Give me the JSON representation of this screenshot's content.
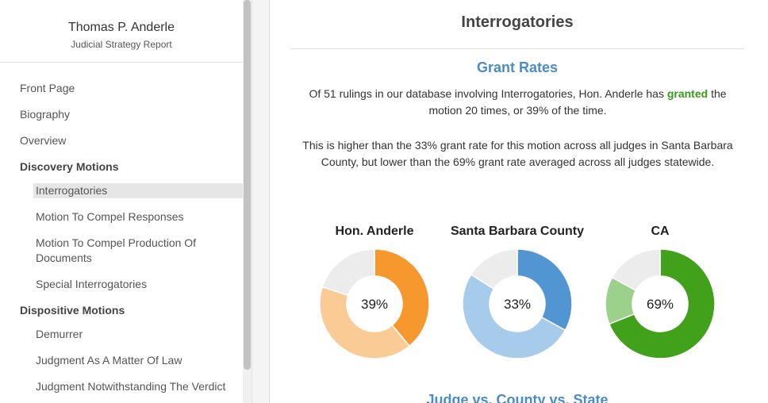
{
  "sidebar": {
    "name": "Thomas P. Anderle",
    "subtitle": "Judicial Strategy Report",
    "items": [
      {
        "label": "Front Page",
        "kind": "item"
      },
      {
        "label": "Biography",
        "kind": "item"
      },
      {
        "label": "Overview",
        "kind": "item"
      },
      {
        "label": "Discovery Motions",
        "kind": "section"
      },
      {
        "label": "Interrogatories",
        "kind": "sub",
        "active": true
      },
      {
        "label": "Motion To Compel Responses",
        "kind": "sub"
      },
      {
        "label": "Motion To Compel Production Of Documents",
        "kind": "sub"
      },
      {
        "label": "Special Interrogatories",
        "kind": "sub"
      },
      {
        "label": "Dispositive Motions",
        "kind": "section"
      },
      {
        "label": "Demurrer",
        "kind": "sub"
      },
      {
        "label": "Judgment As A Matter Of Law",
        "kind": "sub"
      },
      {
        "label": "Judgment Notwithstanding The Verdict",
        "kind": "sub"
      }
    ]
  },
  "main": {
    "title": "Interrogatories",
    "section_heading": "Grant Rates",
    "para1_before": "Of 51 rulings in our database involving Interrogatories, Hon. Anderle has ",
    "para1_emph": "granted",
    "para1_after": " the motion 20 times, or 39% of the time.",
    "para2": "This is higher than the 33% grant rate for this motion across all judges in Santa Barbara County, but lower than the 69% grant rate averaged across all judges statewide.",
    "next_heading": "Judge vs. County vs. State"
  },
  "chart_data": [
    {
      "type": "pie",
      "title": "Hon. Anderle",
      "center_label": "39%",
      "values": [
        39,
        41,
        20
      ],
      "colors": [
        "#f7982f",
        "#fbcb96",
        "#ececec"
      ]
    },
    {
      "type": "pie",
      "title": "Santa Barbara County",
      "center_label": "33%",
      "values": [
        33,
        51,
        16
      ],
      "colors": [
        "#5196d3",
        "#a7cbea",
        "#ececec"
      ]
    },
    {
      "type": "pie",
      "title": "CA",
      "center_label": "69%",
      "values": [
        69,
        14,
        17
      ],
      "colors": [
        "#41a11a",
        "#9bd18b",
        "#ececec"
      ]
    }
  ]
}
